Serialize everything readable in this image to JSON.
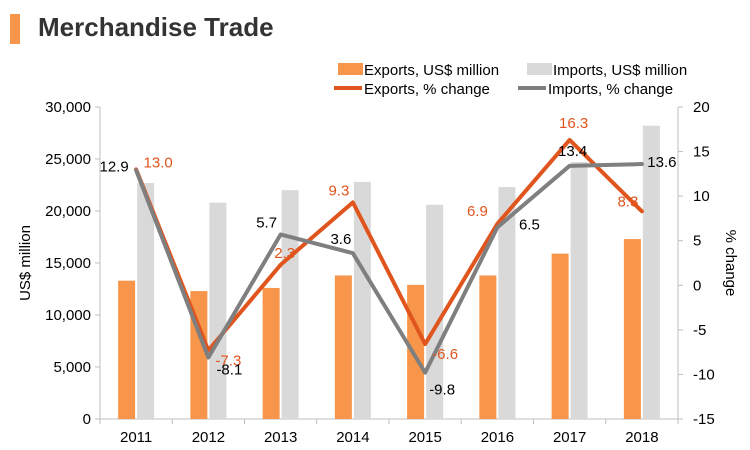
{
  "header": {
    "title": "Merchandise Trade"
  },
  "chart_data": {
    "type": "bar",
    "categories": [
      "2011",
      "2012",
      "2013",
      "2014",
      "2015",
      "2016",
      "2017",
      "2018"
    ],
    "bar_series": [
      {
        "name": "Exports, US$ million",
        "color": "#f7964a",
        "values": [
          13300,
          12300,
          12600,
          13800,
          12900,
          13800,
          15900,
          17300
        ]
      },
      {
        "name": "Imports, US$ million",
        "color": "#d9d9d9",
        "values": [
          22700,
          20800,
          22000,
          22800,
          20600,
          22300,
          24700,
          28200
        ]
      }
    ],
    "line_series": [
      {
        "name": "Exports, % change",
        "color": "#e0541d",
        "label_color": "#e0541d",
        "values": [
          13.0,
          -7.3,
          2.3,
          9.3,
          -6.6,
          6.9,
          16.3,
          8.3
        ],
        "labels": [
          "13.0",
          "-7.3",
          "2.3",
          "9.3",
          "-6.6",
          "6.9",
          "16.3",
          "8.3"
        ]
      },
      {
        "name": "Imports, % change",
        "color": "#7f7f7f",
        "label_color": "#000000",
        "values": [
          12.9,
          -8.1,
          5.7,
          3.6,
          -9.8,
          6.5,
          13.4,
          13.6
        ],
        "labels": [
          "12.9",
          "-8.1",
          "5.7",
          "3.6",
          "-9.8",
          "6.5",
          "13.4",
          "13.6"
        ]
      }
    ],
    "ylabel_left": "US$ million",
    "ylabel_right": "% change",
    "ylim_left": [
      0,
      30000
    ],
    "ylim_right": [
      -15,
      20
    ],
    "yticks_left": [
      "0",
      "5,000",
      "10,000",
      "15,000",
      "20,000",
      "25,000",
      "30,000"
    ],
    "yticks_right": [
      "-15",
      "-10",
      "-5",
      "0",
      "5",
      "10",
      "15",
      "20"
    ],
    "legend_position": "top-right",
    "grid": false
  }
}
